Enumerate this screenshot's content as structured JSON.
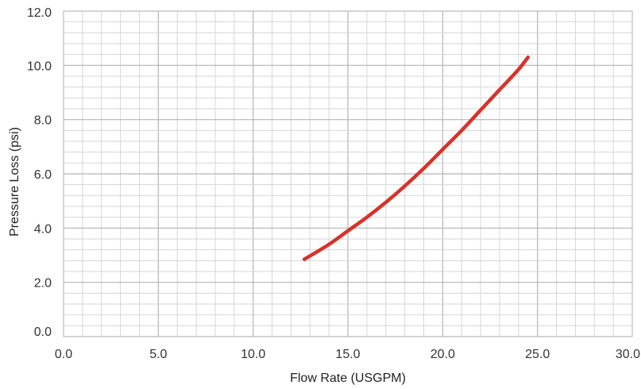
{
  "chart_data": {
    "type": "line",
    "title": "",
    "xlabel": "Flow Rate (USGPM)",
    "ylabel": "Pressure Loss (psi)",
    "xlim": [
      0,
      30
    ],
    "ylim": [
      0,
      12
    ],
    "x_ticks": [
      "0.0",
      "5.0",
      "10.0",
      "15.0",
      "20.0",
      "25.0",
      "30.0"
    ],
    "y_ticks": [
      "0.0",
      "2.0",
      "4.0",
      "6.0",
      "8.0",
      "10.0",
      "12.0"
    ],
    "x_major_step": 5,
    "x_minor_step": 1,
    "y_major_step": 2,
    "y_minor_step": 0.4,
    "grid": true,
    "series": [
      {
        "color": "#d8322a",
        "x": [
          12.7,
          14.0,
          15.0,
          16.0,
          17.0,
          18.0,
          19.0,
          20.0,
          21.0,
          22.0,
          23.0,
          24.0,
          24.5
        ],
        "y": [
          2.85,
          3.4,
          3.9,
          4.4,
          4.95,
          5.55,
          6.2,
          6.9,
          7.6,
          8.35,
          9.1,
          9.85,
          10.3
        ]
      }
    ]
  }
}
